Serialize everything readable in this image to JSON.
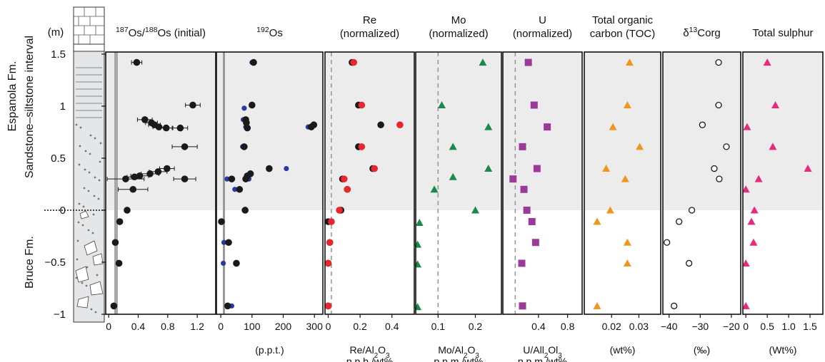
{
  "chart_data": [
    {
      "type": "scatter",
      "title": [
        [
          {
            "text": "187",
            "pos": "sup"
          },
          {
            "text": "Os/"
          },
          {
            "text": "188",
            "pos": "sup"
          },
          {
            "text": "Os (initial)"
          }
        ]
      ],
      "ylabel": "(m)",
      "ylim": [
        -1,
        1.52
      ],
      "yticks": [
        {
          "value": -1,
          "label": "−1"
        },
        {
          "value": -0.5,
          "label": "−0.5"
        },
        0,
        0.5,
        1,
        1.5
      ],
      "shaded_interval": [
        0,
        1.52
      ],
      "annotations": [
        "Espanola Fm.",
        "Sandstone–siltstone interval",
        "Bruce Fm."
      ],
      "xlim": [
        -0.04,
        1.45
      ],
      "xticks": [
        0,
        0.4,
        0.8,
        1.2
      ],
      "reference_line": 0.1,
      "reference_style": "band",
      "series": [
        {
          "color": "#1a1a1a",
          "marker": "circle",
          "y": [
            1.42,
            1.01,
            0.87,
            0.84,
            0.82,
            0.8,
            0.79,
            0.79,
            0.61,
            0.4,
            0.37,
            0.35,
            0.33,
            0.32,
            0.3,
            0.3,
            0.2,
            0,
            -0.11,
            -0.31,
            -0.51,
            -0.92
          ],
          "x": [
            0.38,
            1.14,
            0.49,
            0.58,
            0.62,
            0.68,
            0.78,
            0.97,
            1.03,
            0.79,
            0.67,
            0.56,
            0.42,
            0.35,
            0.23,
            1.03,
            0.33,
            0.25,
            0.15,
            0.09,
            0.14,
            0.07
          ],
          "errors": [
            0.07,
            0.1,
            0.1,
            0.08,
            0.08,
            0.08,
            0.08,
            0.1,
            0.17,
            0.1,
            0.12,
            0.12,
            0.12,
            0.1,
            0.25,
            0.15,
            0.2,
            0.03,
            0.03,
            0,
            0,
            0
          ]
        }
      ]
    },
    {
      "type": "scatter",
      "title": [
        [
          {
            "text": "192",
            "pos": "sup"
          },
          {
            "text": "Os"
          }
        ]
      ],
      "xlabel": [
        [
          {
            "text": "(p.p.t.)"
          }
        ]
      ],
      "xlim": [
        -14,
        327
      ],
      "xticks": [
        0,
        100,
        200,
        300
      ],
      "reference_line": 10,
      "reference_style": "solid",
      "series": [
        {
          "color": "#2b3a9e",
          "marker": "circle-small",
          "y": [
            1.42,
            0.98,
            0.87,
            0.8,
            0.8,
            0.61,
            0.4,
            0.3,
            0.3,
            0.2,
            0,
            -0.11,
            -0.31,
            -0.51,
            -0.92
          ],
          "x": [
            100,
            75,
            72,
            80,
            280,
            70,
            210,
            90,
            20,
            45,
            75,
            0,
            10,
            8,
            35
          ]
        },
        {
          "color": "#1a1a1a",
          "marker": "circle",
          "y": [
            1.42,
            1.01,
            0.87,
            0.84,
            0.79,
            0.8,
            0.82,
            0.61,
            0.4,
            0.35,
            0.33,
            0.3,
            0.3,
            0.2,
            0,
            -0.11,
            -0.31,
            -0.51,
            -0.92
          ],
          "x": [
            105,
            100,
            80,
            82,
            85,
            290,
            298,
            75,
            155,
            95,
            85,
            35,
            80,
            60,
            78,
            2,
            25,
            50,
            22
          ]
        }
      ]
    },
    {
      "type": "scatter",
      "title": [
        [
          {
            "text": "Re"
          }
        ],
        [
          {
            "text": "(normalized)"
          }
        ]
      ],
      "xlabel": [
        [
          {
            "text": "Re/Al"
          },
          {
            "text": "2",
            "pos": "sub"
          },
          {
            "text": "O"
          },
          {
            "text": "3",
            "pos": "sub"
          }
        ],
        [
          {
            "text": "p.p.b./wt%"
          }
        ]
      ],
      "xlim": [
        -0.02,
        0.54
      ],
      "xticks": [
        0,
        0.2,
        0.4
      ],
      "reference_line": 0.02,
      "reference_style": "dashed",
      "series": [
        {
          "color": "#1a1a1a",
          "marker": "circle",
          "y": [
            1.42,
            1.01,
            0.82,
            0.61,
            0.4,
            0.3,
            0.2,
            0,
            -0.11,
            -0.31,
            -0.51,
            -0.92
          ],
          "x": [
            0.15,
            0.19,
            0.33,
            0.19,
            0.28,
            0.09,
            0.12,
            0.08,
            0,
            0.01,
            0,
            0
          ]
        },
        {
          "color": "#e8262b",
          "marker": "circle",
          "y": [
            1.42,
            1.01,
            0.82,
            0.61,
            0.4,
            0.3,
            0.2,
            0,
            -0.11,
            -0.31,
            -0.51,
            -0.92
          ],
          "x": [
            0.16,
            0.21,
            0.45,
            0.21,
            0.29,
            0.1,
            0.12,
            0.07,
            0.02,
            0.01,
            0,
            0
          ]
        }
      ]
    },
    {
      "type": "scatter",
      "title": [
        [
          {
            "text": "Mo"
          }
        ],
        [
          {
            "text": "(normalized)"
          }
        ]
      ],
      "xlabel": [
        [
          {
            "text": "Mo/Al"
          },
          {
            "text": "2",
            "pos": "sub"
          },
          {
            "text": "O"
          },
          {
            "text": "3",
            "pos": "sub"
          }
        ],
        [
          {
            "text": "p.p.m./wt%"
          }
        ]
      ],
      "xlim": [
        0.04,
        0.27
      ],
      "xticks": [
        0.1,
        0.2
      ],
      "reference_line": 0.1,
      "reference_style": "dashed",
      "series": [
        {
          "color": "#1a8a4a",
          "marker": "triangle",
          "y": [
            1.42,
            1.01,
            0.8,
            0.61,
            0.4,
            0.32,
            0.2,
            0,
            -0.12,
            -0.33,
            -0.52,
            -0.93
          ],
          "x": [
            0.22,
            0.11,
            0.235,
            0.14,
            0.235,
            0.14,
            0.09,
            0.2,
            0.05,
            0.045,
            0.045,
            0.045
          ]
        }
      ]
    },
    {
      "type": "scatter",
      "title": [
        [
          {
            "text": "U"
          }
        ],
        [
          {
            "text": "(normalized)"
          }
        ]
      ],
      "xlabel": [
        [
          {
            "text": "U/All"
          },
          {
            "text": "2",
            "pos": "sub"
          },
          {
            "text": "Ol"
          },
          {
            "text": "3",
            "pos": "sub"
          }
        ],
        [
          {
            "text": "p.p.m./wt%"
          }
        ]
      ],
      "xlim": [
        -0.09,
        1.0
      ],
      "xticks": [
        0.4,
        0.8
      ],
      "reference_line": 0.08,
      "reference_style": "dashed",
      "series": [
        {
          "color": "#9b3a9b",
          "marker": "square",
          "y": [
            1.42,
            1.01,
            0.8,
            0.61,
            0.4,
            0.3,
            0.2,
            0,
            -0.11,
            -0.31,
            -0.51,
            -0.92
          ],
          "x": [
            0.26,
            0.34,
            0.52,
            0.18,
            0.38,
            0.05,
            0.2,
            0.24,
            0.31,
            0.36,
            0.17,
            0.18
          ]
        }
      ]
    },
    {
      "type": "scatter",
      "title": [
        [
          {
            "text": "Total organic"
          }
        ],
        [
          {
            "text": "carbon (TOC)"
          }
        ]
      ],
      "xlabel": [
        [
          {
            "text": "(wt%)"
          }
        ]
      ],
      "xlim": [
        0.01,
        0.038
      ],
      "xticks": [
        0.02,
        0.03
      ],
      "series": [
        {
          "color": "#f0961e",
          "marker": "triangle",
          "y": [
            1.42,
            1.01,
            0.8,
            0.61,
            0.4,
            0.3,
            0,
            -0.11,
            -0.31,
            -0.51,
            -0.92
          ],
          "x": [
            0.0266,
            0.0258,
            0.0205,
            0.0303,
            0.018,
            0.025,
            0.0195,
            0.0147,
            0.0258,
            0.0258,
            0.0147
          ]
        }
      ]
    },
    {
      "type": "scatter",
      "title": [
        [
          {
            "text": "δ"
          },
          {
            "text": "13",
            "pos": "sup"
          },
          {
            "text": "Corg"
          }
        ]
      ],
      "xlabel": [
        [
          {
            "text": "(‰)"
          }
        ]
      ],
      "xlim": [
        -42,
        -17
      ],
      "xticks": [
        {
          "value": -40,
          "label": "−40"
        },
        {
          "value": -30,
          "label": "−30"
        },
        {
          "value": -20,
          "label": "−20"
        }
      ],
      "series": [
        {
          "color": "#1a1a1a",
          "marker": "open-circle",
          "y": [
            1.42,
            1.01,
            0.82,
            0.61,
            0.4,
            0.3,
            0,
            -0.11,
            -0.31,
            -0.51,
            -0.92
          ],
          "x": [
            -24.1,
            -24.1,
            -29.3,
            -21.6,
            -25.5,
            -23.9,
            -32.7,
            -36.8,
            -40.7,
            -33.6,
            -38.4
          ]
        }
      ]
    },
    {
      "type": "scatter",
      "title": [
        [
          {
            "text": "Total sulphur"
          }
        ]
      ],
      "xlabel": [
        [
          {
            "text": "(Wt%)"
          }
        ]
      ],
      "xlim": [
        -0.07,
        1.8
      ],
      "xticks": [
        0,
        0.5,
        {
          "value": 1,
          "label": "1.0"
        },
        1.5
      ],
      "series": [
        {
          "color": "#e8297c",
          "marker": "triangle",
          "y": [
            1.42,
            1.01,
            0.8,
            0.61,
            0.4,
            0.3,
            0.2,
            0,
            -0.11,
            -0.31,
            -0.51,
            -0.92
          ],
          "x": [
            0.5,
            0.69,
            0.03,
            0.63,
            1.45,
            0.3,
            0,
            0.2,
            0.13,
            0.18,
            0,
            0
          ]
        }
      ]
    }
  ]
}
